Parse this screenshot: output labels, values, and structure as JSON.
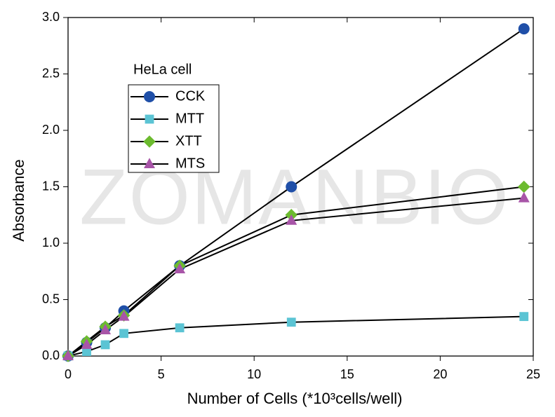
{
  "chart_data": {
    "type": "line",
    "watermark": "ZOMANBIO",
    "legend_title": "HeLa cell",
    "xlabel": "Number of Cells (*10³cells/well)",
    "ylabel": "Absorbance",
    "x": [
      0,
      1,
      2,
      3,
      6,
      12,
      24.5
    ],
    "series": [
      {
        "name": "CCK",
        "color": "#1f4fa8",
        "marker": "circle",
        "values": [
          0,
          0.12,
          0.25,
          0.4,
          0.8,
          1.5,
          2.9
        ]
      },
      {
        "name": "MTT",
        "color": "#5bc4d4",
        "marker": "square",
        "values": [
          0,
          0.04,
          0.1,
          0.2,
          0.25,
          0.3,
          0.35
        ]
      },
      {
        "name": "XTT",
        "color": "#6cbb2f",
        "marker": "diamond",
        "values": [
          0,
          0.13,
          0.26,
          0.36,
          0.8,
          1.25,
          1.5
        ]
      },
      {
        "name": "MTS",
        "color": "#a855a8",
        "marker": "triangle",
        "values": [
          0,
          0.1,
          0.23,
          0.35,
          0.77,
          1.2,
          1.4
        ]
      }
    ],
    "xlim": [
      0,
      25
    ],
    "xticks": [
      0,
      5,
      10,
      15,
      20,
      25
    ],
    "ylim": [
      0,
      3
    ],
    "yticks": [
      {
        "value": 0,
        "label": "0.0"
      },
      0.5,
      {
        "value": 1,
        "label": "1.0"
      },
      1.5,
      {
        "value": 2,
        "label": "2.0"
      },
      2.5,
      {
        "value": 3,
        "label": "3.0"
      }
    ],
    "line_color": "#000000"
  }
}
